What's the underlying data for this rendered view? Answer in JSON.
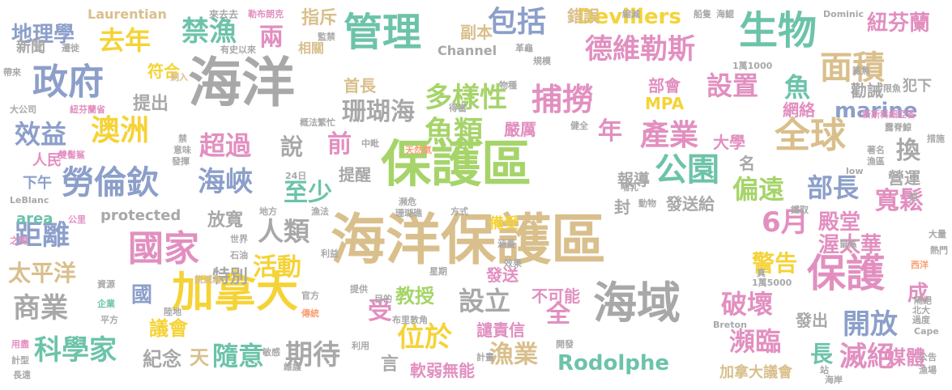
{
  "palette": {
    "gray": "#a8a8a8",
    "tan": "#d9bf8c",
    "green": "#a6d46a",
    "yellow": "#f5d337",
    "blue": "#8c9fca",
    "pink": "#e28fc0",
    "orange": "#f99f72",
    "teal": "#6cc3a9",
    "dark": "#9a9a9a"
  },
  "words": [
    {
      "t": "保護區",
      "c": "green"
    },
    {
      "t": "海洋保護區",
      "c": "tan"
    },
    {
      "t": "海洋",
      "c": "gray"
    },
    {
      "t": "加拿大",
      "c": "yellow"
    },
    {
      "t": "政府",
      "c": "blue"
    },
    {
      "t": "生物",
      "c": "teal"
    },
    {
      "t": "管理",
      "c": "teal"
    },
    {
      "t": "海域",
      "c": "gray"
    },
    {
      "t": "國家",
      "c": "pink"
    },
    {
      "t": "保護",
      "c": "pink"
    },
    {
      "t": "德維勒斯",
      "c": "pink"
    },
    {
      "t": "捕撈",
      "c": "pink"
    },
    {
      "t": "全球",
      "c": "tan"
    },
    {
      "t": "勞倫欽",
      "c": "blue"
    },
    {
      "t": "海峽",
      "c": "blue"
    },
    {
      "t": "公園",
      "c": "teal"
    },
    {
      "t": "魚類",
      "c": "green"
    },
    {
      "t": "澳洲",
      "c": "yellow"
    },
    {
      "t": "產業",
      "c": "pink"
    },
    {
      "t": "面積",
      "c": "tan"
    },
    {
      "t": "珊瑚海",
      "c": "gray"
    },
    {
      "t": "多樣性",
      "c": "green"
    },
    {
      "t": "科學家",
      "c": "teal"
    },
    {
      "t": "期待",
      "c": "gray"
    },
    {
      "t": "商業",
      "c": "gray"
    },
    {
      "t": "距離",
      "c": "blue"
    },
    {
      "t": "設立",
      "c": "gray"
    },
    {
      "t": "包括",
      "c": "blue"
    },
    {
      "t": "禁漁",
      "c": "teal"
    },
    {
      "t": "去年",
      "c": "yellow"
    },
    {
      "t": "效益",
      "c": "blue"
    },
    {
      "t": "破壞",
      "c": "pink"
    },
    {
      "t": "開放",
      "c": "blue"
    },
    {
      "t": "瀕臨",
      "c": "pink"
    },
    {
      "t": "滅絕",
      "c": "pink"
    },
    {
      "t": "漁業",
      "c": "tan"
    },
    {
      "t": "位於",
      "c": "yellow"
    },
    {
      "t": "隨意",
      "c": "teal"
    },
    {
      "t": "活動",
      "c": "yellow"
    },
    {
      "t": "人類",
      "c": "gray"
    },
    {
      "t": "偏遠",
      "c": "green"
    },
    {
      "t": "部長",
      "c": "blue"
    },
    {
      "t": "寬鬆",
      "c": "pink"
    },
    {
      "t": "超過",
      "c": "pink"
    },
    {
      "t": "至少",
      "c": "teal"
    },
    {
      "t": "設置",
      "c": "pink"
    },
    {
      "t": "地理學",
      "c": "blue"
    },
    {
      "t": "紐芬蘭",
      "c": "pink"
    },
    {
      "t": "marine",
      "c": "blue"
    },
    {
      "t": "Devillers",
      "c": "yellow"
    },
    {
      "t": "Rodolphe",
      "c": "teal"
    },
    {
      "t": "太平洋",
      "c": "tan"
    },
    {
      "t": "6月",
      "c": "pink"
    },
    {
      "t": "殿堂",
      "c": "pink"
    },
    {
      "t": "渥太華",
      "c": "pink"
    },
    {
      "t": "警告",
      "c": "yellow"
    },
    {
      "t": "教授",
      "c": "green"
    },
    {
      "t": "議會",
      "c": "yellow"
    },
    {
      "t": "紀念",
      "c": "gray"
    },
    {
      "t": "媒體",
      "c": "pink"
    },
    {
      "t": "年",
      "c": "pink"
    },
    {
      "t": "魚",
      "c": "teal"
    },
    {
      "t": "換",
      "c": "gray"
    },
    {
      "t": "說",
      "c": "gray"
    },
    {
      "t": "前",
      "c": "pink"
    },
    {
      "t": "兩",
      "c": "pink"
    },
    {
      "t": "國",
      "c": "blue"
    },
    {
      "t": "受",
      "c": "pink"
    },
    {
      "t": "全",
      "c": "pink"
    },
    {
      "t": "長",
      "c": "teal"
    },
    {
      "t": "成",
      "c": "pink"
    },
    {
      "t": "天",
      "c": "tan"
    },
    {
      "t": "言",
      "c": "gray"
    },
    {
      "t": "名",
      "c": "gray"
    },
    {
      "t": "封",
      "c": "gray"
    },
    {
      "t": "特別",
      "c": "gray"
    },
    {
      "t": "放寬",
      "c": "gray"
    },
    {
      "t": "提出",
      "c": "gray"
    },
    {
      "t": "首長",
      "c": "tan"
    },
    {
      "t": "符合",
      "c": "yellow"
    },
    {
      "t": "指斥",
      "c": "tan"
    },
    {
      "t": "錯誤",
      "c": "tan"
    },
    {
      "t": "副本",
      "c": "tan"
    },
    {
      "t": "部會",
      "c": "pink"
    },
    {
      "t": "MPA",
      "c": "yellow"
    },
    {
      "t": "大學",
      "c": "pink"
    },
    {
      "t": "網絡",
      "c": "pink"
    },
    {
      "t": "勸誡",
      "c": "gray"
    },
    {
      "t": "發送",
      "c": "pink"
    },
    {
      "t": "不可能",
      "c": "pink"
    },
    {
      "t": "譴責信",
      "c": "pink"
    },
    {
      "t": "軟弱無能",
      "c": "pink"
    },
    {
      "t": "發出",
      "c": "gray"
    },
    {
      "t": "發送給",
      "c": "gray"
    },
    {
      "t": "報導",
      "c": "gray"
    },
    {
      "t": "提醒",
      "c": "gray"
    },
    {
      "t": "嚴厲",
      "c": "pink"
    },
    {
      "t": "營運",
      "c": "gray"
    },
    {
      "t": "人民",
      "c": "pink"
    },
    {
      "t": "下午",
      "c": "blue"
    },
    {
      "t": "新聞",
      "c": "gray"
    },
    {
      "t": "相關",
      "c": "tan"
    },
    {
      "t": "area",
      "c": "teal"
    },
    {
      "t": "protected",
      "c": "gray"
    },
    {
      "t": "Channel",
      "c": "gray"
    },
    {
      "t": "Laurentian",
      "c": "tan"
    },
    {
      "t": "備受",
      "c": "yellow"
    },
    {
      "t": "加拿大議會",
      "c": "tan"
    },
    {
      "t": "犯下",
      "c": "gray"
    },
    {
      "t": "來去去",
      "c": "gray"
    },
    {
      "t": "勒布朗克",
      "c": "pink"
    },
    {
      "t": "遷徙",
      "c": "gray"
    },
    {
      "t": "監禁",
      "c": "gray"
    },
    {
      "t": "有史以來",
      "c": "gray"
    },
    {
      "t": "縮減",
      "c": "gray"
    },
    {
      "t": "船隻",
      "c": "gray"
    },
    {
      "t": "海鯤",
      "c": "gray"
    },
    {
      "t": "Dominic",
      "c": "gray"
    },
    {
      "t": "帶來",
      "c": "gray"
    },
    {
      "t": "大公司",
      "c": "gray"
    },
    {
      "t": "紐芬蘭省",
      "c": "pink"
    },
    {
      "t": "雙髻鯊",
      "c": "pink"
    },
    {
      "t": "禁",
      "c": "gray"
    },
    {
      "t": "意味",
      "c": "gray"
    },
    {
      "t": "發揮",
      "c": "gray"
    },
    {
      "t": "LeBlanc",
      "c": "gray"
    },
    {
      "t": "公里",
      "c": "pink"
    },
    {
      "t": "之間",
      "c": "pink"
    },
    {
      "t": "資源",
      "c": "gray"
    },
    {
      "t": "企業",
      "c": "teal"
    },
    {
      "t": "平方",
      "c": "gray"
    },
    {
      "t": "用盡",
      "c": "pink"
    },
    {
      "t": "計型",
      "c": "gray"
    },
    {
      "t": "長遠",
      "c": "gray"
    },
    {
      "t": "剩入",
      "c": "tan"
    },
    {
      "t": "鋭減為",
      "c": "tan"
    },
    {
      "t": "陸地",
      "c": "gray"
    },
    {
      "t": "世界",
      "c": "gray"
    },
    {
      "t": "石油",
      "c": "gray"
    },
    {
      "t": "利益",
      "c": "gray"
    },
    {
      "t": "官方",
      "c": "gray"
    },
    {
      "t": "傳統",
      "c": "orange"
    },
    {
      "t": "維護",
      "c": "gray"
    },
    {
      "t": "敏感",
      "c": "gray"
    },
    {
      "t": "利用",
      "c": "gray"
    },
    {
      "t": "布里敦角",
      "c": "gray"
    },
    {
      "t": "星期",
      "c": "gray"
    },
    {
      "t": "提供",
      "c": "gray"
    },
    {
      "t": "目的",
      "c": "gray"
    },
    {
      "t": "開發",
      "c": "gray"
    },
    {
      "t": "計畫",
      "c": "gray"
    },
    {
      "t": "效果",
      "c": "gray"
    },
    {
      "t": "涵蓋",
      "c": "gray"
    },
    {
      "t": "真",
      "c": "gray"
    },
    {
      "t": "1萬5000",
      "c": "gray"
    },
    {
      "t": "隔絕",
      "c": "gray"
    },
    {
      "t": "北大",
      "c": "gray"
    },
    {
      "t": "過度",
      "c": "gray"
    },
    {
      "t": "Breton",
      "c": "gray"
    },
    {
      "t": "Cape",
      "c": "gray"
    },
    {
      "t": "站",
      "c": "gray"
    },
    {
      "t": "海岸",
      "c": "gray"
    },
    {
      "t": "公告",
      "c": "gray"
    },
    {
      "t": "漁場",
      "c": "gray"
    },
    {
      "t": "大量",
      "c": "gray"
    },
    {
      "t": "熱門",
      "c": "gray"
    },
    {
      "t": "鼠鯊",
      "c": "gray"
    },
    {
      "t": "西洋",
      "c": "orange"
    },
    {
      "t": "鐵取",
      "c": "gray"
    },
    {
      "t": "哺乳",
      "c": "gray"
    },
    {
      "t": "動物",
      "c": "gray"
    },
    {
      "t": "方式",
      "c": "gray"
    },
    {
      "t": "瀕危",
      "c": "gray"
    },
    {
      "t": "珊瑚礁",
      "c": "gray"
    },
    {
      "t": "24日",
      "c": "gray"
    },
    {
      "t": "漁法",
      "c": "gray"
    },
    {
      "t": "地方",
      "c": "gray"
    },
    {
      "t": "中毗",
      "c": "gray"
    },
    {
      "t": "天然氣",
      "c": "orange"
    },
    {
      "t": "概法",
      "c": "gray"
    },
    {
      "t": "繁忙",
      "c": "gray"
    },
    {
      "t": "得當",
      "c": "gray"
    },
    {
      "t": "健全",
      "c": "gray"
    },
    {
      "t": "物種",
      "c": "gray"
    },
    {
      "t": "規模",
      "c": "gray"
    },
    {
      "t": "革龜",
      "c": "gray"
    },
    {
      "t": "1萬1000",
      "c": "gray"
    },
    {
      "t": "鯊魚",
      "c": "gray"
    },
    {
      "t": "限魚",
      "c": "gray"
    },
    {
      "t": "新斯科細亞省",
      "c": "pink"
    },
    {
      "t": "露脊鯨",
      "c": "gray"
    },
    {
      "t": "措施",
      "c": "gray"
    },
    {
      "t": "著名",
      "c": "gray"
    },
    {
      "t": "漁區",
      "c": "gray"
    },
    {
      "t": "low",
      "c": "gray"
    },
    {
      "t": "剪",
      "c": "gray"
    }
  ]
}
